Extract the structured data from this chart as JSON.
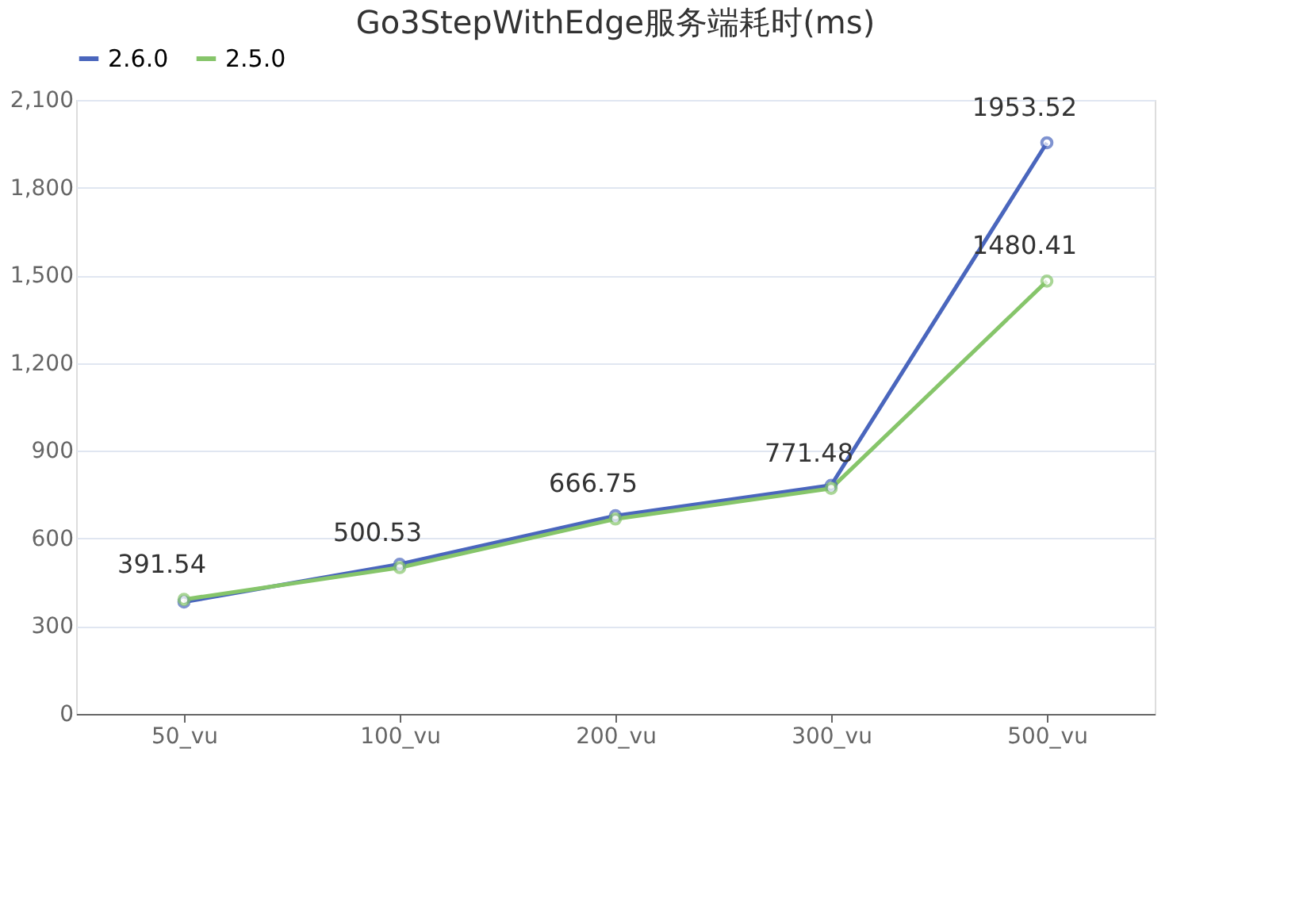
{
  "chart_data": {
    "type": "line",
    "title": "Go3StepWithEdge服务端耗时(ms)",
    "categories": [
      "50_vu",
      "100_vu",
      "200_vu",
      "300_vu",
      "500_vu"
    ],
    "series": [
      {
        "name": "2.6.0",
        "color": "#4a66bd",
        "values": [
          383,
          512,
          678,
          782,
          1953.52
        ],
        "value_labels": [
          null,
          null,
          null,
          null,
          "1953.52"
        ]
      },
      {
        "name": "2.5.0",
        "color": "#86c56a",
        "values": [
          391.54,
          500.53,
          666.75,
          771.48,
          1480.41
        ],
        "value_labels": [
          "391.54",
          "500.53",
          "666.75",
          "771.48",
          "1480.41"
        ]
      }
    ],
    "ylim": [
      0,
      2100
    ],
    "yticks": [
      {
        "value": 0,
        "label": "0"
      },
      {
        "value": 300,
        "label": "300"
      },
      {
        "value": 600,
        "label": "600"
      },
      {
        "value": 900,
        "label": "900"
      },
      {
        "value": 1200,
        "label": "1,200"
      },
      {
        "value": 1500,
        "label": "1,500"
      },
      {
        "value": 1800,
        "label": "1,800"
      },
      {
        "value": 2100,
        "label": "2,100"
      }
    ],
    "grid": "y",
    "legend": "top",
    "marker": "circle",
    "line_style": "solid"
  }
}
